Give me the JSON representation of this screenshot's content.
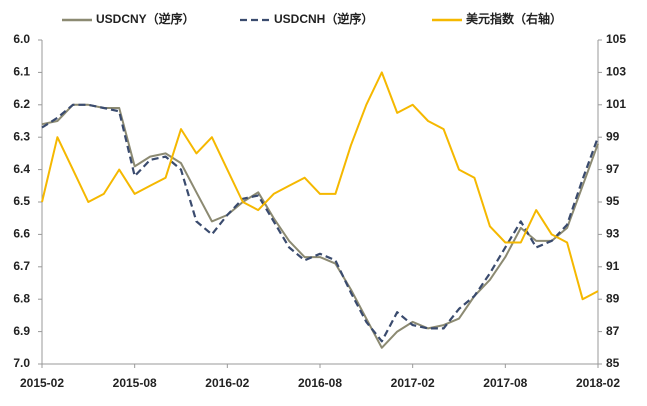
{
  "chart_data": {
    "type": "line",
    "categories": [
      "2015-02",
      null,
      null,
      null,
      null,
      null,
      "2015-08",
      null,
      null,
      null,
      null,
      null,
      "2016-02",
      null,
      null,
      null,
      null,
      null,
      "2016-08",
      null,
      null,
      null,
      null,
      null,
      "2017-02",
      null,
      null,
      null,
      null,
      null,
      "2017-08",
      null,
      null,
      null,
      null,
      null,
      "2018-02"
    ],
    "series": [
      {
        "name": "USDCNY（逆序）",
        "color": "#8c8a72",
        "dash": false,
        "axis": "y",
        "values": [
          6.26,
          6.25,
          6.2,
          6.2,
          6.21,
          6.21,
          6.39,
          6.36,
          6.35,
          6.38,
          6.47,
          6.56,
          6.54,
          6.5,
          6.47,
          6.55,
          6.62,
          6.67,
          6.67,
          6.69,
          6.77,
          6.86,
          6.95,
          6.9,
          6.87,
          6.89,
          6.88,
          6.86,
          6.79,
          6.74,
          6.67,
          6.58,
          6.62,
          6.62,
          6.58,
          6.45,
          6.32
        ]
      },
      {
        "name": "USDCNH（逆序）",
        "color": "#3a4b6e",
        "dash": true,
        "axis": "y",
        "values": [
          6.27,
          6.24,
          6.2,
          6.2,
          6.21,
          6.22,
          6.42,
          6.37,
          6.36,
          6.4,
          6.56,
          6.6,
          6.54,
          6.49,
          6.48,
          6.56,
          6.64,
          6.68,
          6.66,
          6.68,
          6.78,
          6.87,
          6.93,
          6.84,
          6.88,
          6.89,
          6.89,
          6.83,
          6.79,
          6.72,
          6.64,
          6.56,
          6.64,
          6.62,
          6.57,
          6.43,
          6.3
        ]
      },
      {
        "name": "美元指数（右轴）",
        "color": "#f5b800",
        "dash": false,
        "axis": "y2",
        "values": [
          95,
          99,
          97,
          95,
          95.5,
          97,
          95.5,
          96,
          96.5,
          99.5,
          98,
          99,
          97,
          95,
          94.5,
          95.5,
          96,
          96.5,
          95.5,
          95.5,
          98.5,
          101,
          103,
          100.5,
          101,
          100,
          99.5,
          97,
          96.5,
          93.5,
          92.5,
          92.5,
          94.5,
          93,
          92.5,
          89,
          89.5
        ]
      }
    ],
    "ylim": [
      6.0,
      7.0
    ],
    "y_inverted": true,
    "yticks": [
      {
        "value": 6,
        "label": "6.0"
      },
      6.1,
      6.2,
      6.3,
      6.4,
      6.5,
      6.6,
      6.7,
      6.8,
      6.9,
      {
        "value": 7,
        "label": "7.0"
      }
    ],
    "y2lim": [
      85,
      105
    ],
    "y2ticks": [
      85,
      87,
      89,
      91,
      93,
      95,
      97,
      99,
      101,
      103,
      105
    ],
    "grid": false,
    "legend": "top"
  }
}
